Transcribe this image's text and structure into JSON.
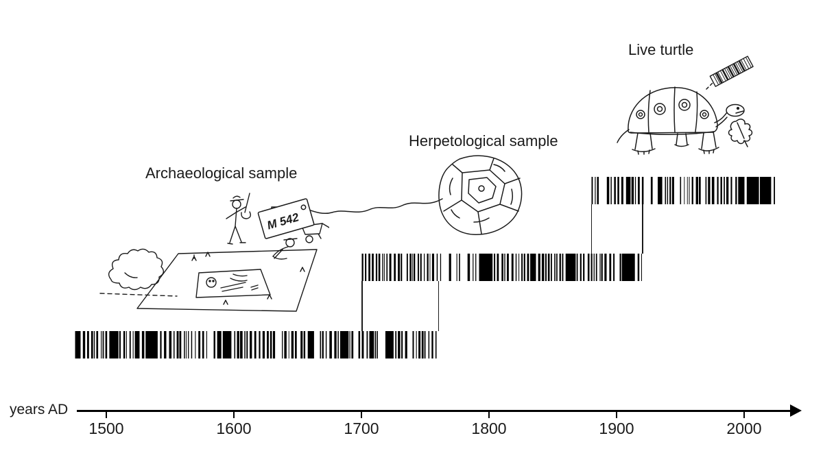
{
  "colors": {
    "ink": "#1a1a1a",
    "background": "#ffffff",
    "barcode": "#000000"
  },
  "figure": {
    "tag_label": "M 542"
  },
  "chart_data": {
    "type": "bar",
    "subtype": "timeline-barcode-crossdating",
    "xlabel": "years AD",
    "x_range": [
      1460,
      2040
    ],
    "x_ticks": [
      1500,
      1600,
      1700,
      1800,
      1900,
      2000
    ],
    "grid": false,
    "series": [
      {
        "name": "Archaeological sample",
        "start_year": 1475,
        "end_year": 1760
      },
      {
        "name": "Herpetological sample",
        "start_year": 1700,
        "end_year": 1920
      },
      {
        "name": "Live turtle",
        "start_year": 1880,
        "end_year": 2025
      }
    ],
    "overlaps": [
      {
        "between": [
          "Archaeological sample",
          "Herpetological sample"
        ],
        "from_year": 1700,
        "to_year": 1760
      },
      {
        "between": [
          "Herpetological sample",
          "Live turtle"
        ],
        "from_year": 1880,
        "to_year": 1920
      }
    ]
  }
}
